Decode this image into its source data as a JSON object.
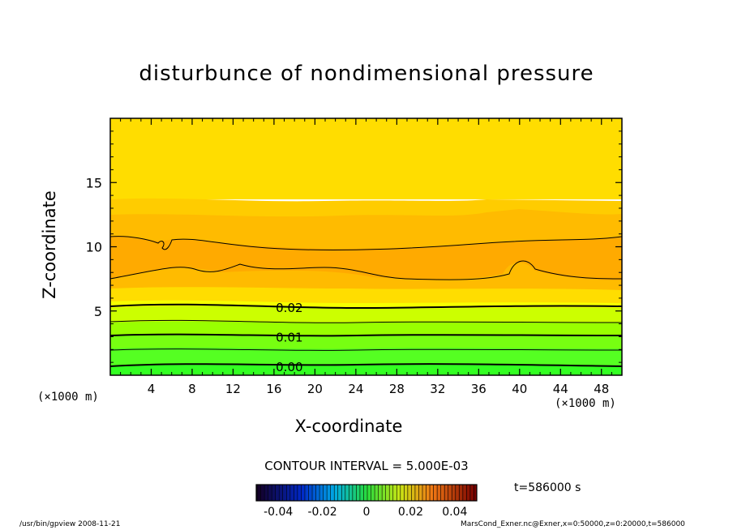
{
  "title": "disturbunce of nondimensional pressure",
  "xunit_left": "(×1000 m)",
  "xunit_right": "(×1000 m)",
  "contour_interval": "CONTOUR INTERVAL = 5.000E-03",
  "time_label": "t=586000 s",
  "footer_left": "/usr/bin/gpview  2008-11-21",
  "footer_right": "MarsCond_Exner.nc@Exner,x=0:50000,z=0:20000,t=586000",
  "colors": {
    "low": "#22ff22",
    "mid": "#f6ff00",
    "high": "#ffaa00",
    "bg": "#ffffff"
  },
  "chart_data": {
    "type": "heatmap",
    "title": "disturbunce of nondimensional pressure",
    "xlabel": "X-coordinate",
    "ylabel": "Z-coordinate",
    "xlim": [
      0,
      50
    ],
    "ylim": [
      0,
      20
    ],
    "xticks": [
      4,
      8,
      12,
      16,
      20,
      24,
      28,
      32,
      36,
      40,
      44,
      48
    ],
    "yticks": [
      5,
      10,
      15
    ],
    "contour_labels": [
      {
        "label": "0.02",
        "x": 17.5,
        "z": 5.3
      },
      {
        "label": "0.01",
        "x": 17.5,
        "z": 3.0
      },
      {
        "label": "0.00",
        "x": 17.5,
        "z": 0.7
      }
    ],
    "contour_lines_z": [
      0.7,
      1.7,
      3.0,
      4.0,
      5.3,
      7.8,
      9.6
    ],
    "colorbar": {
      "range": [
        -0.05,
        0.05
      ],
      "ticks": [
        "-0.04",
        "-0.02",
        "0",
        "0.02",
        "0.04"
      ]
    }
  }
}
